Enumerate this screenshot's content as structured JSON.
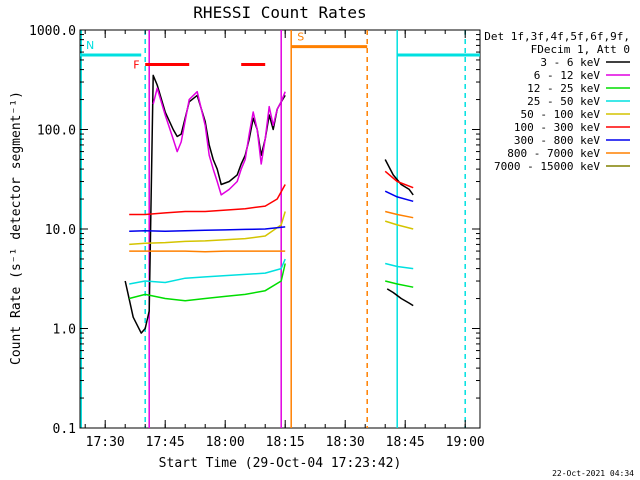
{
  "chart_data": {
    "type": "line",
    "title": "RHESSI Count Rates",
    "xlabel": "Start Time (29-Oct-04 17:23:42)",
    "ylabel": "Count Rate (s⁻¹ detector segment⁻¹)",
    "x_ticks": [
      "17:30",
      "17:45",
      "18:00",
      "18:15",
      "18:30",
      "18:45",
      "19:00"
    ],
    "y_ticks": [
      "0.1",
      "1.0",
      "10.0",
      "100.0",
      "1000.0"
    ],
    "xlim": [
      "17:23:42",
      "19:03:42"
    ],
    "ylim": [
      0.1,
      1000
    ],
    "y_scale": "log",
    "legend_position": "right",
    "legend_header": [
      "Det 1f,3f,4f,5f,6f,9f,",
      "FDecim 1, Att 0"
    ],
    "footer_timestamp": "22-Oct-2021 04:34",
    "series": [
      {
        "name": "3 - 6 keV",
        "color": "#000000",
        "segments": [
          {
            "x": [
              "17:35:00",
              "17:37:00",
              "17:39:00",
              "17:40:00",
              "17:41:00",
              "17:42:00",
              "17:43:00",
              "17:45:00",
              "17:47:00",
              "17:48:00",
              "17:49:00",
              "17:51:00",
              "17:53:00",
              "17:55:00",
              "17:56:00",
              "17:57:00",
              "17:58:00",
              "17:59:00",
              "18:01:00",
              "18:03:00",
              "18:04:00",
              "18:05:00",
              "18:06:00",
              "18:07:00",
              "18:08:00",
              "18:09:00",
              "18:10:00",
              "18:11:00",
              "18:12:00",
              "18:13:00",
              "18:14:00",
              "18:15:00"
            ],
            "y": [
              3,
              1.3,
              0.9,
              1,
              1.5,
              350,
              280,
              150,
              100,
              85,
              90,
              190,
              220,
              120,
              70,
              50,
              40,
              28,
              30,
              35,
              45,
              55,
              80,
              130,
              100,
              55,
              80,
              140,
              100,
              160,
              190,
              220
            ]
          },
          {
            "x": [
              "18:40:00",
              "18:42:00",
              "18:44:00",
              "18:46:00",
              "18:47:00"
            ],
            "y": [
              50,
              35,
              28,
              25,
              22
            ]
          },
          {
            "x": [
              "18:40:30",
              "18:42:00",
              "18:44:00",
              "18:46:00",
              "18:47:00"
            ],
            "y": [
              2.5,
              2.3,
              2,
              1.8,
              1.7
            ]
          }
        ]
      },
      {
        "name": "6 - 12 keV",
        "color": "#e000e0",
        "segments": [
          {
            "x": [
              "17:42:00",
              "17:43:00",
              "17:45:00",
              "17:47:00",
              "17:48:00",
              "17:49:00",
              "17:51:00",
              "17:53:00",
              "17:55:00",
              "17:56:00",
              "17:57:00",
              "17:58:00",
              "17:59:00",
              "18:01:00",
              "18:03:00",
              "18:04:00",
              "18:05:00",
              "18:06:00",
              "18:07:00",
              "18:08:00",
              "18:09:00",
              "18:10:00",
              "18:11:00",
              "18:12:00",
              "18:13:00",
              "18:14:00",
              "18:15:00"
            ],
            "y": [
              180,
              260,
              140,
              80,
              60,
              75,
              200,
              240,
              110,
              55,
              40,
              30,
              22,
              25,
              30,
              40,
              50,
              90,
              150,
              100,
              45,
              80,
              170,
              110,
              160,
              190,
              240
            ]
          }
        ]
      },
      {
        "name": "12 - 25 keV",
        "color": "#00dd00",
        "segments": [
          {
            "x": [
              "17:36:00",
              "17:40:00",
              "17:45:00",
              "17:50:00",
              "17:55:00",
              "18:00:00",
              "18:05:00",
              "18:10:00",
              "18:14:00",
              "18:15:00"
            ],
            "y": [
              2,
              2.2,
              2,
              1.9,
              2,
              2.1,
              2.2,
              2.4,
              3,
              4.5
            ]
          },
          {
            "x": [
              "18:40:00",
              "18:43:00",
              "18:47:00"
            ],
            "y": [
              3,
              2.8,
              2.6
            ]
          }
        ]
      },
      {
        "name": "25 - 50 keV",
        "color": "#00e0e0",
        "segments": [
          {
            "x": [
              "17:36:00",
              "17:40:00",
              "17:45:00",
              "17:50:00",
              "17:55:00",
              "18:00:00",
              "18:05:00",
              "18:10:00",
              "18:14:00",
              "18:15:00"
            ],
            "y": [
              2.8,
              3,
              2.9,
              3.2,
              3.3,
              3.4,
              3.5,
              3.6,
              4,
              5
            ]
          },
          {
            "x": [
              "18:40:00",
              "18:43:00",
              "18:47:00"
            ],
            "y": [
              4.5,
              4.2,
              4
            ]
          }
        ]
      },
      {
        "name": "50 - 100 keV",
        "color": "#d4c400",
        "segments": [
          {
            "x": [
              "17:36:00",
              "17:40:00",
              "17:45:00",
              "17:50:00",
              "17:55:00",
              "18:00:00",
              "18:05:00",
              "18:10:00",
              "18:14:00",
              "18:15:00"
            ],
            "y": [
              7,
              7.2,
              7.3,
              7.5,
              7.6,
              7.8,
              8,
              8.5,
              11,
              15
            ]
          },
          {
            "x": [
              "18:40:00",
              "18:43:00",
              "18:47:00"
            ],
            "y": [
              12,
              11,
              10
            ]
          }
        ]
      },
      {
        "name": "100 - 300 keV",
        "color": "#ff0000",
        "segments": [
          {
            "x": [
              "17:36:00",
              "17:40:00",
              "17:45:00",
              "17:50:00",
              "17:55:00",
              "18:00:00",
              "18:05:00",
              "18:10:00",
              "18:13:00",
              "18:15:00"
            ],
            "y": [
              14,
              14,
              14.5,
              15,
              15,
              15.5,
              16,
              17,
              20,
              28
            ]
          },
          {
            "x": [
              "18:40:00",
              "18:43:00",
              "18:47:00"
            ],
            "y": [
              38,
              30,
              26
            ]
          }
        ]
      },
      {
        "name": "300 - 800 keV",
        "color": "#0000ee",
        "segments": [
          {
            "x": [
              "17:36:00",
              "17:40:00",
              "17:45:00",
              "17:50:00",
              "17:55:00",
              "18:00:00",
              "18:05:00",
              "18:10:00",
              "18:15:00"
            ],
            "y": [
              9.5,
              9.6,
              9.5,
              9.6,
              9.7,
              9.8,
              9.9,
              10,
              10.5
            ]
          },
          {
            "x": [
              "18:40:00",
              "18:43:00",
              "18:47:00"
            ],
            "y": [
              24,
              21,
              19
            ]
          }
        ]
      },
      {
        "name": "800 - 7000 keV",
        "color": "#ff8000",
        "segments": [
          {
            "x": [
              "17:36:00",
              "17:40:00",
              "17:45:00",
              "17:50:00",
              "17:55:00",
              "18:00:00",
              "18:05:00",
              "18:10:00",
              "18:15:00"
            ],
            "y": [
              6,
              6,
              6,
              6,
              5.9,
              6,
              6,
              6,
              6
            ]
          },
          {
            "x": [
              "18:40:00",
              "18:43:00",
              "18:47:00"
            ],
            "y": [
              15,
              14,
              13
            ]
          }
        ]
      },
      {
        "name": "7000 - 15000 keV",
        "color": "#808000",
        "segments": []
      }
    ],
    "attenuator_bars": [
      {
        "label": "N",
        "color": "#00e0e0",
        "x0": "17:23:42",
        "x1": "17:39:00",
        "y": 560
      },
      {
        "label": "",
        "color": "#00e0e0",
        "x0": "18:43:00",
        "x1": "19:03:42",
        "y": 560
      },
      {
        "label": "S",
        "color": "#ff8000",
        "x0": "18:16:30",
        "x1": "18:35:30",
        "y": 680
      },
      {
        "label": "F",
        "color": "#ff0000",
        "x0": "17:40:00",
        "x1": "17:51:00",
        "y": 450
      },
      {
        "label": "",
        "color": "#ff0000",
        "x0": "18:04:00",
        "x1": "18:10:00",
        "y": 450
      }
    ],
    "markers": [
      {
        "x": "17:24:00",
        "color": "#00e0e0",
        "style": "solid"
      },
      {
        "x": "17:40:00",
        "color": "#00e0e0",
        "style": "dashed"
      },
      {
        "x": "17:41:00",
        "color": "#e000e0",
        "style": "solid"
      },
      {
        "x": "18:14:00",
        "color": "#e000e0",
        "style": "solid"
      },
      {
        "x": "18:16:30",
        "color": "#ff8000",
        "style": "solid"
      },
      {
        "x": "18:35:30",
        "color": "#ff8000",
        "style": "dashed"
      },
      {
        "x": "18:43:00",
        "color": "#00e0e0",
        "style": "solid"
      },
      {
        "x": "19:00:00",
        "color": "#00e0e0",
        "style": "dashed"
      }
    ]
  }
}
